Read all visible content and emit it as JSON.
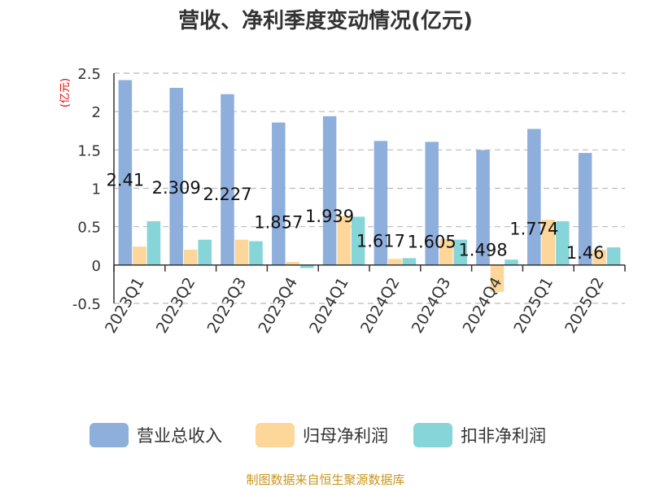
{
  "chart_data": {
    "type": "bar",
    "title": "营收、净利季度变动情况(亿元)",
    "ylabel": "(亿元)",
    "xlabel": "",
    "ylim": [
      -0.5,
      2.5
    ],
    "yticks": [
      -0.5,
      0,
      0.5,
      1,
      1.5,
      2,
      2.5
    ],
    "ytick_labels": [
      "-0.5",
      "0",
      "0.5",
      "1",
      "1.5",
      "2",
      "2.5"
    ],
    "grid": true,
    "legend_position": "bottom",
    "categories": [
      "2023Q1",
      "2023Q2",
      "2023Q3",
      "2023Q4",
      "2024Q1",
      "2024Q2",
      "2024Q3",
      "2024Q4",
      "2025Q1",
      "2025Q2"
    ],
    "series": [
      {
        "name": "营业总收入",
        "color": "#8eaedc",
        "values": [
          2.41,
          2.309,
          2.227,
          1.857,
          1.939,
          1.617,
          1.605,
          1.498,
          1.774,
          1.46
        ],
        "labels": [
          "2.41",
          "2.309",
          "2.227",
          "1.857",
          "1.939",
          "1.617",
          "1.605",
          "1.498",
          "1.774",
          "1.46"
        ]
      },
      {
        "name": "归母净利润",
        "color": "#fdd699",
        "values": [
          0.24,
          0.2,
          0.33,
          0.04,
          0.64,
          0.08,
          0.34,
          -0.35,
          0.59,
          0.2
        ]
      },
      {
        "name": "扣非净利润",
        "color": "#86d5d8",
        "values": [
          0.57,
          0.33,
          0.31,
          -0.04,
          0.63,
          0.09,
          0.33,
          0.07,
          0.57,
          0.23
        ]
      }
    ],
    "source": "制图数据来自恒生聚源数据库"
  }
}
